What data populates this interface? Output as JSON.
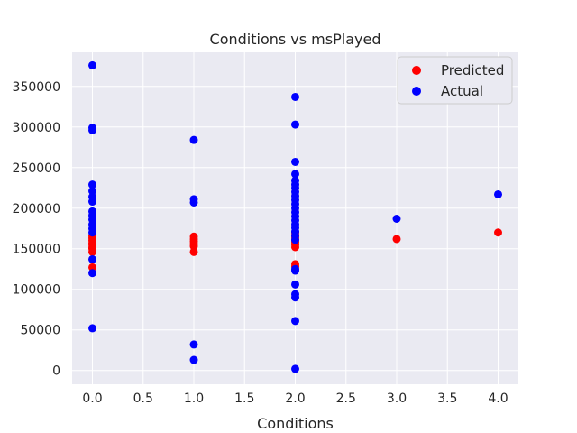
{
  "chart_data": {
    "type": "scatter",
    "title": "Conditions vs msPlayed",
    "xlabel": "Conditions",
    "ylabel": "",
    "xlim": [
      -0.2,
      4.2
    ],
    "ylim": [
      -17000,
      392000
    ],
    "x_ticks": [
      0.0,
      0.5,
      1.0,
      1.5,
      2.0,
      2.5,
      3.0,
      3.5,
      4.0
    ],
    "x_tick_labels": [
      "0.0",
      "0.5",
      "1.0",
      "1.5",
      "2.0",
      "2.5",
      "3.0",
      "3.5",
      "4.0"
    ],
    "y_ticks": [
      0,
      50000,
      100000,
      150000,
      200000,
      250000,
      300000,
      350000
    ],
    "y_tick_labels": [
      "0",
      "50000",
      "100000",
      "150000",
      "200000",
      "250000",
      "300000",
      "350000"
    ],
    "grid": true,
    "legend_position": "top-right",
    "series": [
      {
        "name": "Predicted",
        "color": "#ff0000",
        "points": [
          [
            0,
            127000
          ],
          [
            0,
            146000
          ],
          [
            0,
            150000
          ],
          [
            0,
            152000
          ],
          [
            0,
            155000
          ],
          [
            0,
            157000
          ],
          [
            0,
            160000
          ],
          [
            0,
            163000
          ],
          [
            0,
            166000
          ],
          [
            1,
            146000
          ],
          [
            1,
            153000
          ],
          [
            1,
            156000
          ],
          [
            1,
            159000
          ],
          [
            1,
            162000
          ],
          [
            1,
            165000
          ],
          [
            2,
            128000
          ],
          [
            2,
            131000
          ],
          [
            2,
            152000
          ],
          [
            2,
            155000
          ],
          [
            2,
            158000
          ],
          [
            2,
            161000
          ],
          [
            2,
            164000
          ],
          [
            2,
            167000
          ],
          [
            2,
            170000
          ],
          [
            3,
            162000
          ],
          [
            4,
            170000
          ]
        ]
      },
      {
        "name": "Actual",
        "color": "#0000ff",
        "points": [
          [
            0,
            376000
          ],
          [
            0,
            299000
          ],
          [
            0,
            296000
          ],
          [
            0,
            229000
          ],
          [
            0,
            221000
          ],
          [
            0,
            214000
          ],
          [
            0,
            208000
          ],
          [
            0,
            196000
          ],
          [
            0,
            191000
          ],
          [
            0,
            186000
          ],
          [
            0,
            180000
          ],
          [
            0,
            175000
          ],
          [
            0,
            170000
          ],
          [
            0,
            137000
          ],
          [
            0,
            120000
          ],
          [
            0,
            52000
          ],
          [
            1,
            284000
          ],
          [
            1,
            211000
          ],
          [
            1,
            207000
          ],
          [
            1,
            32000
          ],
          [
            1,
            13000
          ],
          [
            2,
            337000
          ],
          [
            2,
            303000
          ],
          [
            2,
            257000
          ],
          [
            2,
            242000
          ],
          [
            2,
            234000
          ],
          [
            2,
            229000
          ],
          [
            2,
            225000
          ],
          [
            2,
            220000
          ],
          [
            2,
            215000
          ],
          [
            2,
            210000
          ],
          [
            2,
            205000
          ],
          [
            2,
            200000
          ],
          [
            2,
            195000
          ],
          [
            2,
            190000
          ],
          [
            2,
            185000
          ],
          [
            2,
            180000
          ],
          [
            2,
            176000
          ],
          [
            2,
            171000
          ],
          [
            2,
            166000
          ],
          [
            2,
            161000
          ],
          [
            2,
            125000
          ],
          [
            2,
            123000
          ],
          [
            2,
            106000
          ],
          [
            2,
            94000
          ],
          [
            2,
            90000
          ],
          [
            2,
            61000
          ],
          [
            2,
            2000
          ],
          [
            3,
            187000
          ],
          [
            4,
            217000
          ]
        ]
      }
    ]
  }
}
